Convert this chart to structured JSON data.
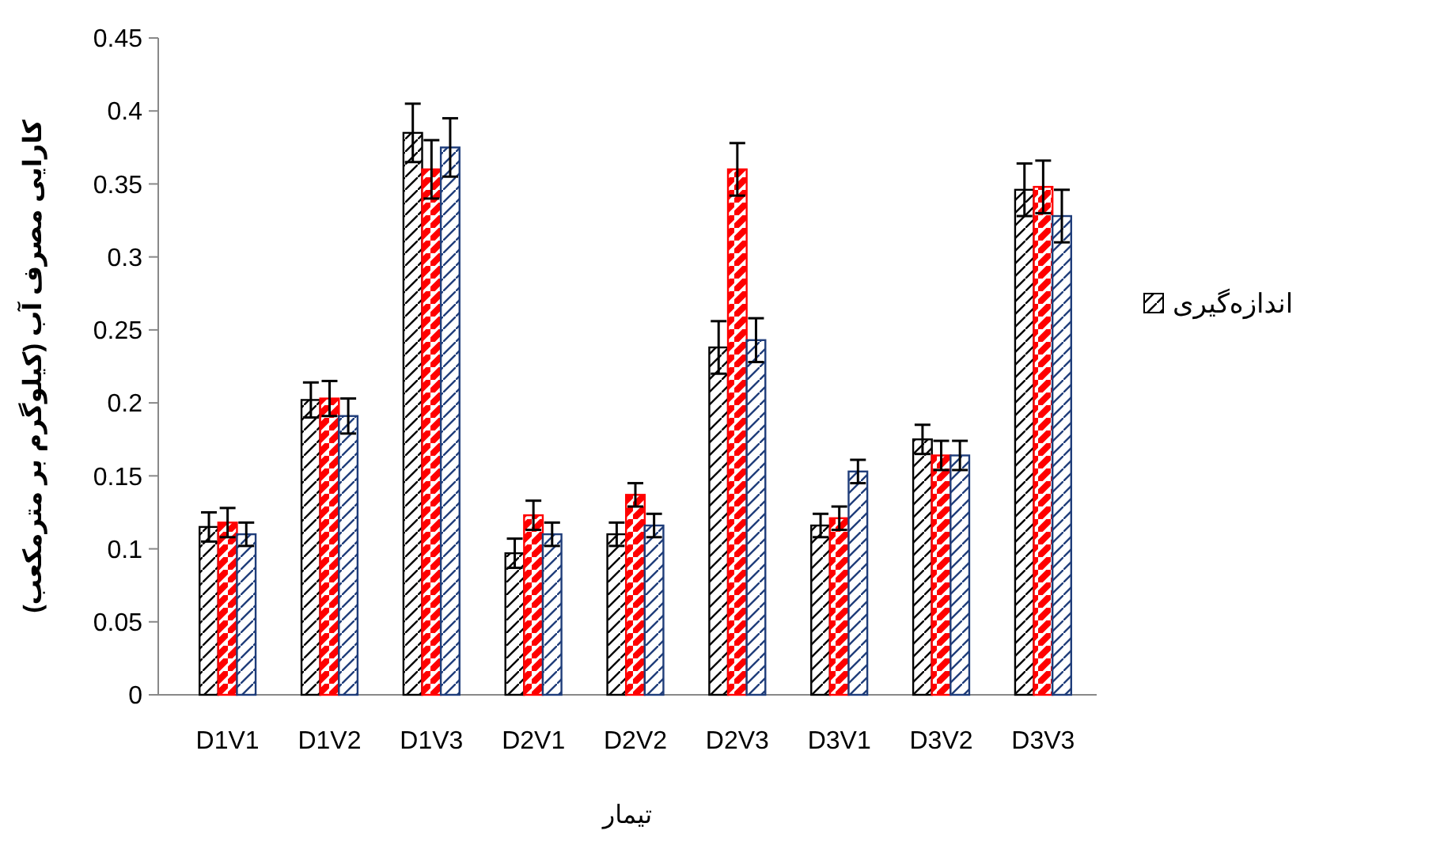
{
  "chart_data": {
    "type": "bar",
    "xlabel": "تیمار",
    "ylabel": "کارایی مصرف آب (کیلوگرم بر مترمکعب)",
    "categories": [
      "D1V1",
      "D1V2",
      "D1V3",
      "D2V1",
      "D2V2",
      "D2V3",
      "D3V1",
      "D3V2",
      "D3V3"
    ],
    "series": [
      {
        "name": "اندازه‌گیری",
        "color": "#000000",
        "values": [
          0.115,
          0.202,
          0.385,
          0.097,
          0.11,
          0.238,
          0.116,
          0.175,
          0.346
        ],
        "errors": [
          0.01,
          0.012,
          0.02,
          0.01,
          0.008,
          0.018,
          0.008,
          0.01,
          0.018
        ]
      },
      {
        "color": "#ff0000",
        "values": [
          0.118,
          0.203,
          0.36,
          0.123,
          0.137,
          0.36,
          0.121,
          0.164,
          0.348
        ],
        "errors": [
          0.01,
          0.012,
          0.02,
          0.01,
          0.008,
          0.018,
          0.008,
          0.01,
          0.018
        ]
      },
      {
        "color": "#1f3d7a",
        "values": [
          0.11,
          0.191,
          0.375,
          0.11,
          0.116,
          0.243,
          0.153,
          0.164,
          0.328
        ],
        "errors": [
          0.008,
          0.012,
          0.02,
          0.008,
          0.008,
          0.015,
          0.008,
          0.01,
          0.018
        ]
      }
    ],
    "ylim": [
      0,
      0.45
    ],
    "yticks": [
      0,
      0.05,
      0.1,
      0.15,
      0.2,
      0.25,
      0.3,
      0.35,
      0.4,
      0.45
    ],
    "grid": false,
    "legend": "right"
  }
}
